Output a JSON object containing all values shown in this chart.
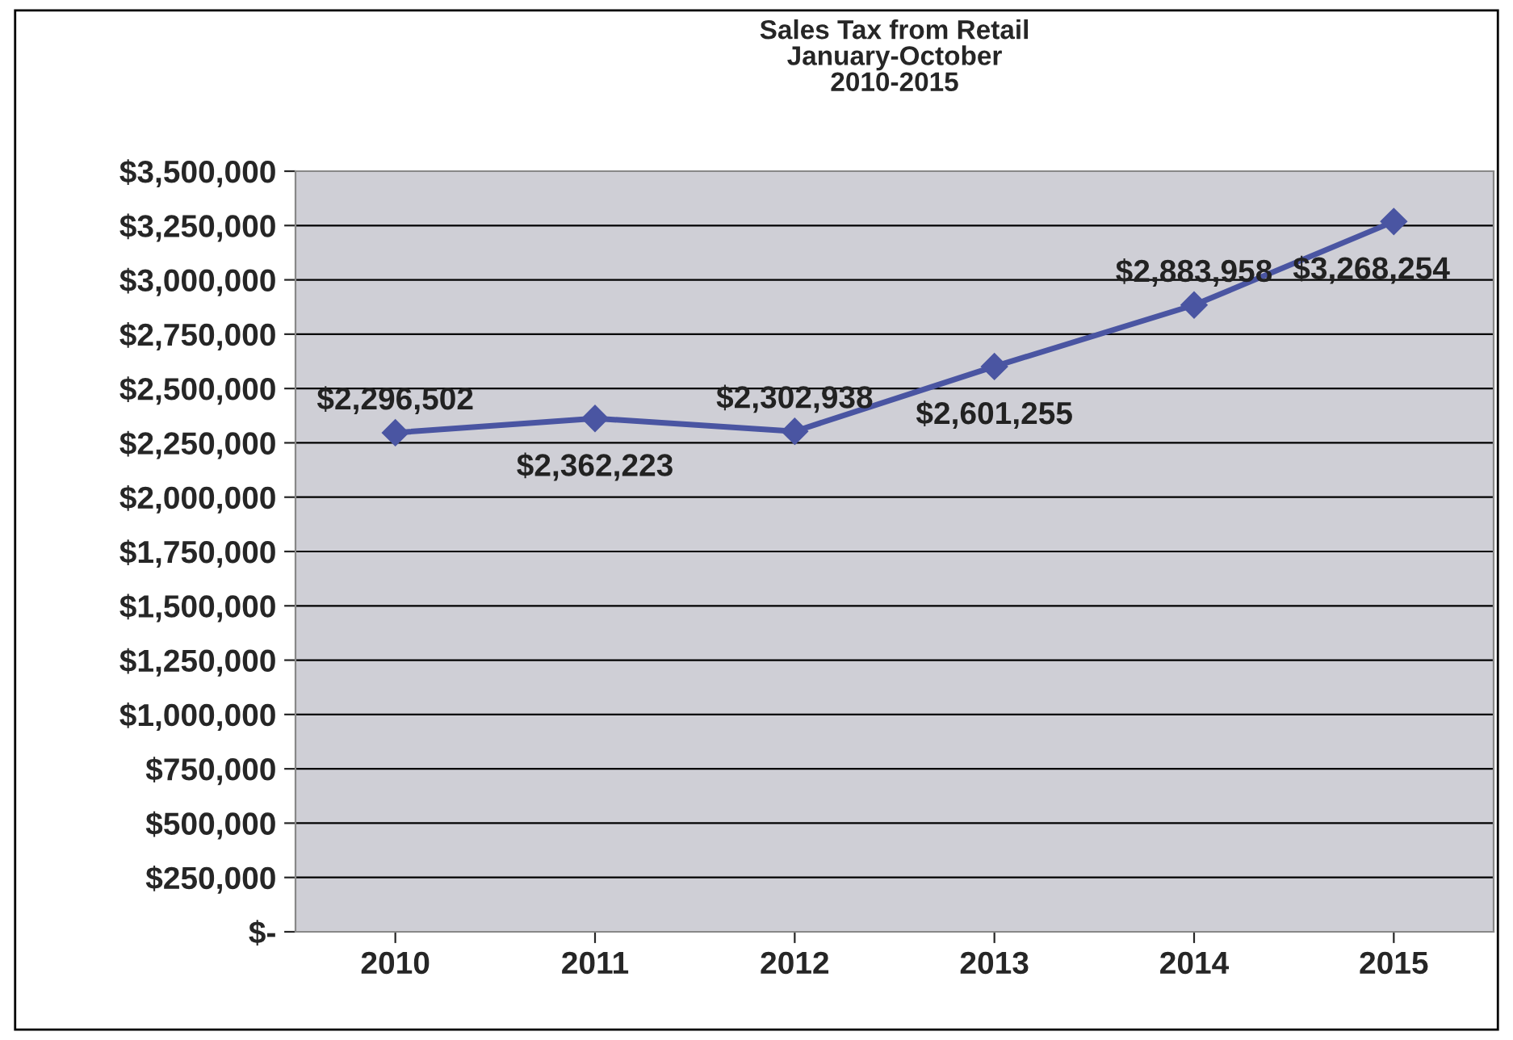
{
  "chart_data": {
    "type": "line",
    "title": "Sales Tax from Retail\nJanuary-October\n2010-2015",
    "categories": [
      "2010",
      "2011",
      "2012",
      "2013",
      "2014",
      "2015"
    ],
    "series": [
      {
        "color": "#4a55a2",
        "values": [
          2296502,
          2362223,
          2302938,
          2601255,
          2883958,
          3268254
        ],
        "value_labels": [
          "$2,296,502",
          "$2,362,223",
          "$2,302,938",
          "$2,601,255",
          "$2,883,958",
          "$3,268,254"
        ]
      }
    ],
    "ylim": [
      0,
      3500000
    ],
    "yticks": [
      {
        "value": 0,
        "label": "$-"
      },
      {
        "value": 250000,
        "label": "$250,000"
      },
      {
        "value": 500000,
        "label": "$500,000"
      },
      {
        "value": 750000,
        "label": "$750,000"
      },
      {
        "value": 1000000,
        "label": "$1,000,000"
      },
      {
        "value": 1250000,
        "label": "$1,250,000"
      },
      {
        "value": 1500000,
        "label": "$1,500,000"
      },
      {
        "value": 1750000,
        "label": "$1,750,000"
      },
      {
        "value": 2000000,
        "label": "$2,000,000"
      },
      {
        "value": 2250000,
        "label": "$2,250,000"
      },
      {
        "value": 2500000,
        "label": "$2,500,000"
      },
      {
        "value": 2750000,
        "label": "$2,750,000"
      },
      {
        "value": 3000000,
        "label": "$3,000,000"
      },
      {
        "value": 3250000,
        "label": "$3,250,000"
      },
      {
        "value": 3500000,
        "label": "$3,500,000"
      }
    ],
    "grid": "y",
    "marker": "diamond",
    "line_style": "solid",
    "legend": false
  }
}
